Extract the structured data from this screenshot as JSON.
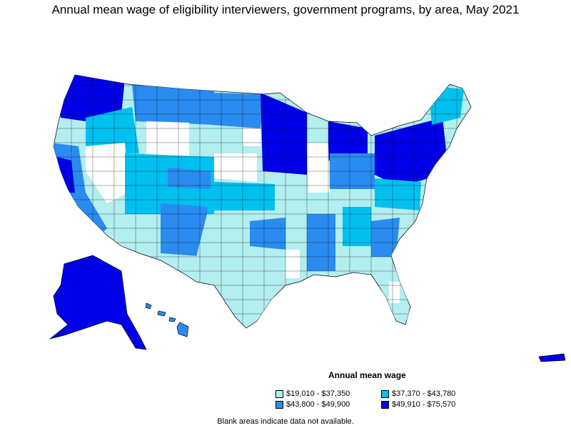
{
  "title": "Annual mean wage of eligibility interviewers, government programs, by area, May 2021",
  "legend": {
    "title": "Annual mean wage",
    "items": [
      {
        "label": "$19,010 - $37,350",
        "color": "#b3eef0"
      },
      {
        "label": "$37,370 - $43,780",
        "color": "#00c0f0"
      },
      {
        "label": "$43,800 - $49,900",
        "color": "#2a8cf0"
      },
      {
        "label": "$49,910 - $75,570",
        "color": "#0000e8"
      }
    ]
  },
  "note": "Blank areas indicate data not available."
}
